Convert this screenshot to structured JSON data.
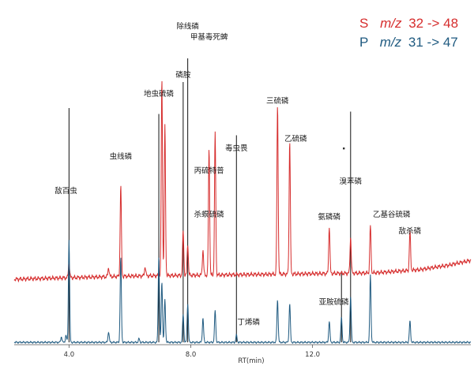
{
  "chart_data": {
    "type": "line",
    "xlabel": "RT(min)",
    "xlim": [
      2.2,
      17.2
    ],
    "x_ticks": [
      "4.0",
      "8.0",
      "12.0"
    ],
    "grid": false,
    "legend_position": "top-right",
    "legend": [
      {
        "channel": "S",
        "mz_prefix": "m/z",
        "transition": "32 -> 48",
        "color": "#d62d2d"
      },
      {
        "channel": "P",
        "mz_prefix": "m/z",
        "transition": "31 -> 47",
        "color": "#1f5a80"
      }
    ],
    "series": [
      {
        "name": "S",
        "color": "#d62d2d",
        "baseline": {
          "x": [
            2.2,
            6.0,
            10.0,
            14.0,
            15.5,
            16.5,
            17.2
          ],
          "y": [
            0.0,
            0.02,
            0.03,
            0.04,
            0.06,
            0.09,
            0.12
          ]
        },
        "peaks": [
          {
            "rt": 4.0,
            "h": 0.1
          },
          {
            "rt": 5.3,
            "h": 0.06
          },
          {
            "rt": 5.7,
            "h": 0.58
          },
          {
            "rt": 6.5,
            "h": 0.06
          },
          {
            "rt": 7.05,
            "h": 1.25
          },
          {
            "rt": 7.15,
            "h": 0.95
          },
          {
            "rt": 7.75,
            "h": 0.28
          },
          {
            "rt": 7.9,
            "h": 0.2
          },
          {
            "rt": 8.4,
            "h": 0.16
          },
          {
            "rt": 8.6,
            "h": 0.8
          },
          {
            "rt": 8.8,
            "h": 0.9
          },
          {
            "rt": 10.85,
            "h": 1.07
          },
          {
            "rt": 11.25,
            "h": 0.85
          },
          {
            "rt": 12.55,
            "h": 0.3
          },
          {
            "rt": 13.25,
            "h": 0.23
          },
          {
            "rt": 13.9,
            "h": 0.3
          },
          {
            "rt": 15.2,
            "h": 0.25
          }
        ]
      },
      {
        "name": "P",
        "color": "#1f5a80",
        "baseline": {
          "x": [
            2.2,
            17.2
          ],
          "y": [
            0.0,
            0.0
          ]
        },
        "peaks": [
          {
            "rt": 3.75,
            "h": 0.08
          },
          {
            "rt": 3.9,
            "h": 0.1
          },
          {
            "rt": 4.0,
            "h": 1.45
          },
          {
            "rt": 5.3,
            "h": 0.15
          },
          {
            "rt": 5.7,
            "h": 1.2
          },
          {
            "rt": 6.3,
            "h": 0.05
          },
          {
            "rt": 6.95,
            "h": 1.22
          },
          {
            "rt": 7.05,
            "h": 0.85
          },
          {
            "rt": 7.15,
            "h": 0.6
          },
          {
            "rt": 7.75,
            "h": 0.4
          },
          {
            "rt": 7.9,
            "h": 0.55
          },
          {
            "rt": 8.4,
            "h": 0.34
          },
          {
            "rt": 8.8,
            "h": 0.45
          },
          {
            "rt": 9.5,
            "h": 0.1
          },
          {
            "rt": 10.85,
            "h": 0.6
          },
          {
            "rt": 11.25,
            "h": 0.55
          },
          {
            "rt": 12.55,
            "h": 0.3
          },
          {
            "rt": 12.95,
            "h": 0.35
          },
          {
            "rt": 13.25,
            "h": 0.65
          },
          {
            "rt": 13.9,
            "h": 0.95
          },
          {
            "rt": 15.2,
            "h": 0.3
          }
        ]
      }
    ],
    "markers": [
      {
        "rt": 4.0,
        "top": 1.98
      },
      {
        "rt": 6.95,
        "top": 1.93
      },
      {
        "rt": 7.75,
        "top": 2.2
      },
      {
        "rt": 7.9,
        "top": 2.4
      },
      {
        "rt": 9.5,
        "top": 1.75
      },
      {
        "rt": 12.95,
        "top": 0.6
      },
      {
        "rt": 13.25,
        "top": 1.95
      }
    ],
    "annotations": [
      {
        "text": "敌百虫",
        "rt": 3.9,
        "level": 1.26
      },
      {
        "text": "虫线磷",
        "rt": 5.7,
        "level": 1.55
      },
      {
        "text": "地虫硫磷",
        "rt": 6.95,
        "level": 2.08
      },
      {
        "text": "磷胺",
        "rt": 7.75,
        "level": 2.24
      },
      {
        "text": "除线磷",
        "rt": 7.9,
        "level": 2.65
      },
      {
        "text": "甲基毒死蜱",
        "rt": 8.6,
        "level": 2.56
      },
      {
        "text": "丙硫特普",
        "rt": 8.6,
        "level": 1.43
      },
      {
        "text": "毒虫畏",
        "rt": 9.5,
        "level": 1.62
      },
      {
        "text": "杀螟硫磷",
        "rt": 8.6,
        "level": 1.06
      },
      {
        "text": "丁烯磷",
        "rt": 9.9,
        "level": 0.15
      },
      {
        "text": "三硫磷",
        "rt": 10.85,
        "level": 2.02
      },
      {
        "text": "乙硫磷",
        "rt": 11.45,
        "level": 1.7
      },
      {
        "text": "溴苯磷",
        "rt": 13.25,
        "level": 1.34
      },
      {
        "text": "氨磷磷",
        "rt": 12.55,
        "level": 1.04
      },
      {
        "text": "亚胺硫磷",
        "rt": 12.7,
        "level": 0.32
      },
      {
        "text": "乙基谷硫磷",
        "rt": 14.6,
        "level": 1.06
      },
      {
        "text": "敌杀磷",
        "rt": 15.2,
        "level": 0.92
      }
    ]
  }
}
